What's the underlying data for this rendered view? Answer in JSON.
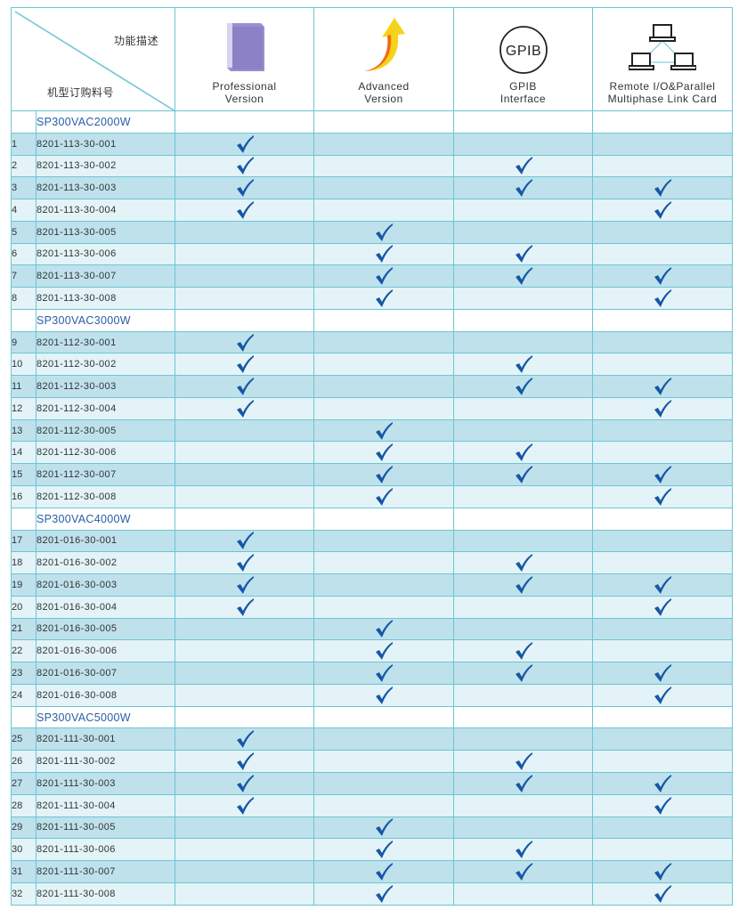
{
  "header": {
    "corner_top": "功能描述",
    "corner_bottom": "机型订购料号",
    "columns": [
      {
        "key": "prof",
        "line1": "Professional",
        "line2": "Version",
        "icon": "book-icon"
      },
      {
        "key": "adv",
        "line1": "Advanced",
        "line2": "Version",
        "icon": "up-arrow-icon"
      },
      {
        "key": "gpib",
        "line1": "GPIB",
        "line2": "Interface",
        "icon": "gpib-icon",
        "icon_text": "GPIB"
      },
      {
        "key": "remote",
        "line1": "Remote I/O&Parallel",
        "line2": "Multiphase Link Card",
        "icon": "network-icon"
      }
    ]
  },
  "colors": {
    "border": "#6cc6d3",
    "row_dark": "#bfe1ec",
    "row_light": "#e3f3f7",
    "check": "#1656a6",
    "group_text": "#2a5ea8"
  },
  "groups": [
    {
      "name": "SP300VAC2000W",
      "rows": [
        {
          "num": "1",
          "part": "8201-113-30-001",
          "prof": true,
          "adv": false,
          "gpib": false,
          "remote": false
        },
        {
          "num": "2",
          "part": "8201-113-30-002",
          "prof": true,
          "adv": false,
          "gpib": true,
          "remote": false
        },
        {
          "num": "3",
          "part": "8201-113-30-003",
          "prof": true,
          "adv": false,
          "gpib": true,
          "remote": true
        },
        {
          "num": "4",
          "part": "8201-113-30-004",
          "prof": true,
          "adv": false,
          "gpib": false,
          "remote": true
        },
        {
          "num": "5",
          "part": "8201-113-30-005",
          "prof": false,
          "adv": true,
          "gpib": false,
          "remote": false
        },
        {
          "num": "6",
          "part": "8201-113-30-006",
          "prof": false,
          "adv": true,
          "gpib": true,
          "remote": false
        },
        {
          "num": "7",
          "part": "8201-113-30-007",
          "prof": false,
          "adv": true,
          "gpib": true,
          "remote": true
        },
        {
          "num": "8",
          "part": "8201-113-30-008",
          "prof": false,
          "adv": true,
          "gpib": false,
          "remote": true
        }
      ]
    },
    {
      "name": "SP300VAC3000W",
      "rows": [
        {
          "num": "9",
          "part": "8201-112-30-001",
          "prof": true,
          "adv": false,
          "gpib": false,
          "remote": false
        },
        {
          "num": "10",
          "part": "8201-112-30-002",
          "prof": true,
          "adv": false,
          "gpib": true,
          "remote": false
        },
        {
          "num": "11",
          "part": "8201-112-30-003",
          "prof": true,
          "adv": false,
          "gpib": true,
          "remote": true
        },
        {
          "num": "12",
          "part": "8201-112-30-004",
          "prof": true,
          "adv": false,
          "gpib": false,
          "remote": true
        },
        {
          "num": "13",
          "part": "8201-112-30-005",
          "prof": false,
          "adv": true,
          "gpib": false,
          "remote": false
        },
        {
          "num": "14",
          "part": "8201-112-30-006",
          "prof": false,
          "adv": true,
          "gpib": true,
          "remote": false
        },
        {
          "num": "15",
          "part": "8201-112-30-007",
          "prof": false,
          "adv": true,
          "gpib": true,
          "remote": true
        },
        {
          "num": "16",
          "part": "8201-112-30-008",
          "prof": false,
          "adv": true,
          "gpib": false,
          "remote": true
        }
      ]
    },
    {
      "name": "SP300VAC4000W",
      "rows": [
        {
          "num": "17",
          "part": "8201-016-30-001",
          "prof": true,
          "adv": false,
          "gpib": false,
          "remote": false
        },
        {
          "num": "18",
          "part": "8201-016-30-002",
          "prof": true,
          "adv": false,
          "gpib": true,
          "remote": false
        },
        {
          "num": "19",
          "part": "8201-016-30-003",
          "prof": true,
          "adv": false,
          "gpib": true,
          "remote": true
        },
        {
          "num": "20",
          "part": "8201-016-30-004",
          "prof": true,
          "adv": false,
          "gpib": false,
          "remote": true
        },
        {
          "num": "21",
          "part": "8201-016-30-005",
          "prof": false,
          "adv": true,
          "gpib": false,
          "remote": false
        },
        {
          "num": "22",
          "part": "8201-016-30-006",
          "prof": false,
          "adv": true,
          "gpib": true,
          "remote": false
        },
        {
          "num": "23",
          "part": "8201-016-30-007",
          "prof": false,
          "adv": true,
          "gpib": true,
          "remote": true
        },
        {
          "num": "24",
          "part": "8201-016-30-008",
          "prof": false,
          "adv": true,
          "gpib": false,
          "remote": true
        }
      ]
    },
    {
      "name": "SP300VAC5000W",
      "rows": [
        {
          "num": "25",
          "part": "8201-111-30-001",
          "prof": true,
          "adv": false,
          "gpib": false,
          "remote": false
        },
        {
          "num": "26",
          "part": "8201-111-30-002",
          "prof": true,
          "adv": false,
          "gpib": true,
          "remote": false
        },
        {
          "num": "27",
          "part": "8201-111-30-003",
          "prof": true,
          "adv": false,
          "gpib": true,
          "remote": true
        },
        {
          "num": "28",
          "part": "8201-111-30-004",
          "prof": true,
          "adv": false,
          "gpib": false,
          "remote": true
        },
        {
          "num": "29",
          "part": "8201-111-30-005",
          "prof": false,
          "adv": true,
          "gpib": false,
          "remote": false
        },
        {
          "num": "30",
          "part": "8201-111-30-006",
          "prof": false,
          "adv": true,
          "gpib": true,
          "remote": false
        },
        {
          "num": "31",
          "part": "8201-111-30-007",
          "prof": false,
          "adv": true,
          "gpib": true,
          "remote": true
        },
        {
          "num": "32",
          "part": "8201-111-30-008",
          "prof": false,
          "adv": true,
          "gpib": false,
          "remote": true
        }
      ]
    }
  ]
}
